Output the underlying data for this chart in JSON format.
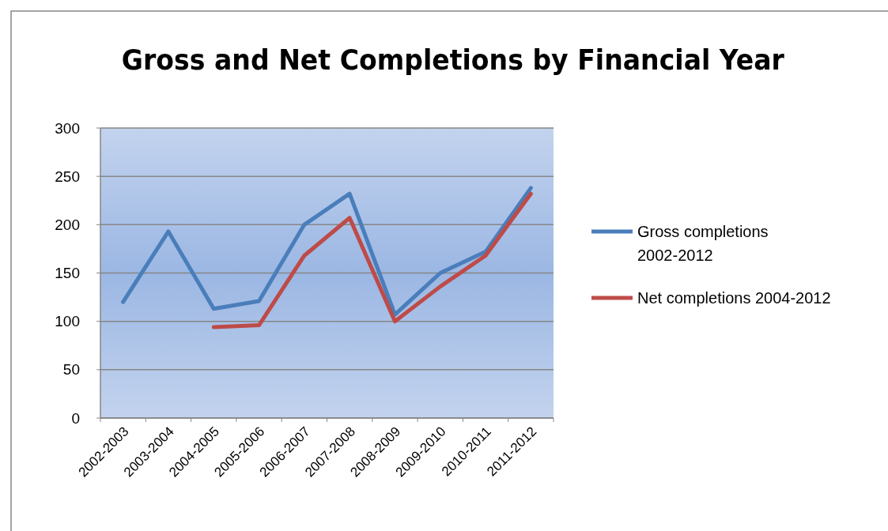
{
  "chart_data": {
    "type": "line",
    "title": "Gross and Net Completions by Financial Year",
    "categories": [
      "2002-2003",
      "2003-2004",
      "2004-2005",
      "2005-2006",
      "2006-2007",
      "2007-2008",
      "2008-2009",
      "2009-2010",
      "2010-2011",
      "2011-2012"
    ],
    "series": [
      {
        "name": "Gross completions 2002-2012",
        "color": "#4a7ebb",
        "values": [
          120,
          193,
          113,
          121,
          200,
          232,
          107,
          150,
          172,
          238
        ]
      },
      {
        "name": "Net completions 2004-2012",
        "color": "#be4b48",
        "values": [
          null,
          null,
          94,
          96,
          168,
          207,
          100,
          136,
          168,
          232
        ]
      }
    ],
    "ylim": [
      0,
      300
    ],
    "yticks": [
      0,
      50,
      100,
      150,
      200,
      250,
      300
    ],
    "grid": "y",
    "legend": "right",
    "marker": "none",
    "line_style": "solid"
  }
}
